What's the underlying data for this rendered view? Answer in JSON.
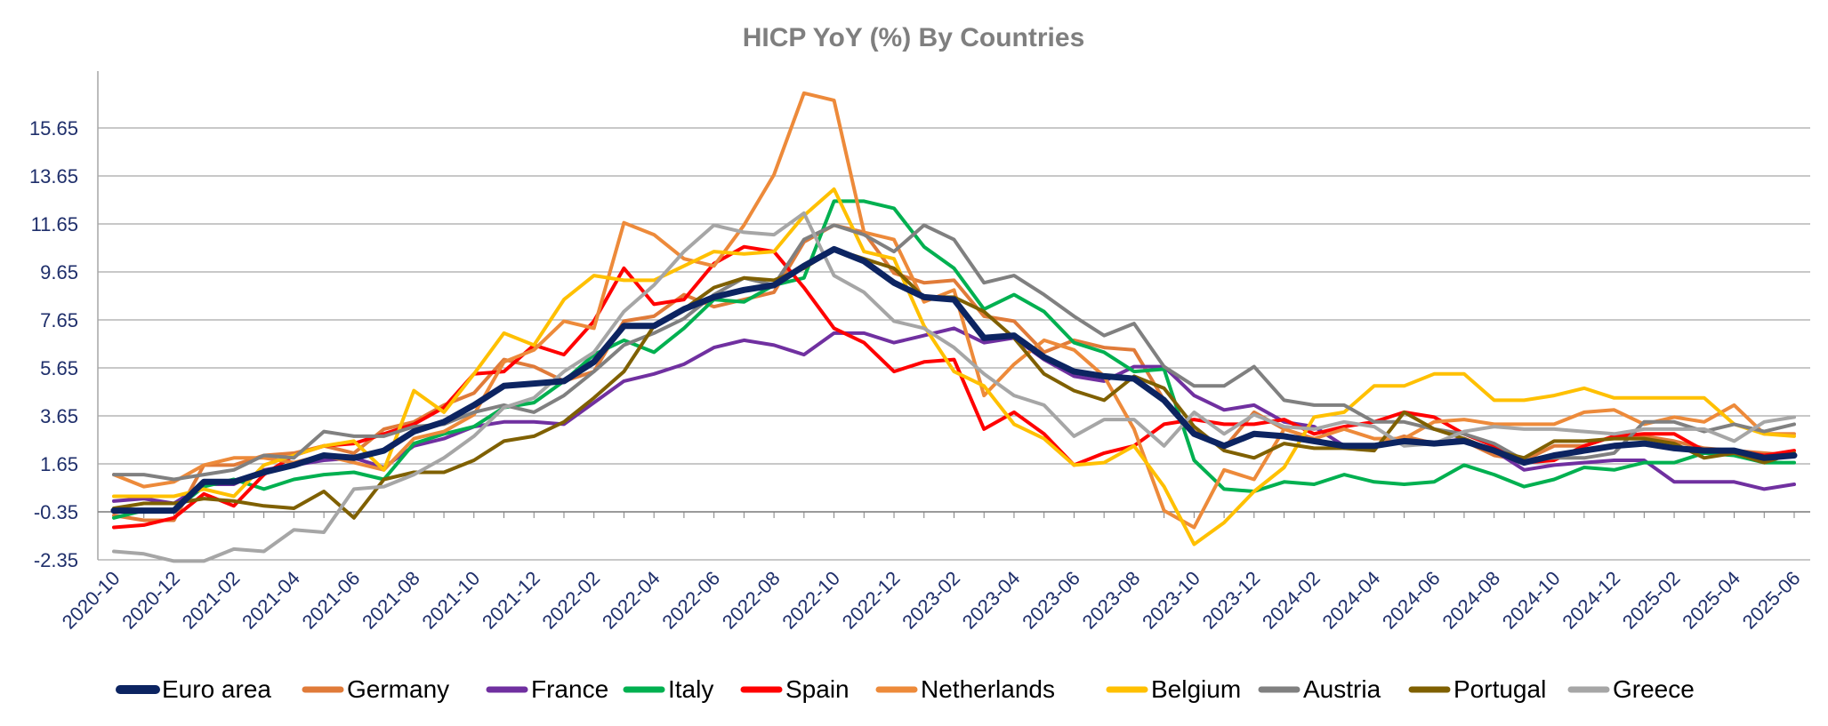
{
  "chart_data": {
    "type": "line",
    "title": "HICP YoY (%) By Countries",
    "xlabel": "",
    "ylabel": "",
    "ylim": [
      -2.35,
      17.65
    ],
    "yticks": [
      "15.65",
      "13.65",
      "11.65",
      "9.65",
      "7.65",
      "5.65",
      "3.65",
      "1.65",
      "-0.35",
      "-2.35"
    ],
    "ytick_values": [
      15.65,
      13.65,
      11.65,
      9.65,
      7.65,
      5.65,
      3.65,
      1.65,
      -0.35,
      -2.35
    ],
    "x": [
      "2020-10",
      "2020-11",
      "2020-12",
      "2021-01",
      "2021-02",
      "2021-03",
      "2021-04",
      "2021-05",
      "2021-06",
      "2021-07",
      "2021-08",
      "2021-09",
      "2021-10",
      "2021-11",
      "2021-12",
      "2022-01",
      "2022-02",
      "2022-03",
      "2022-04",
      "2022-05",
      "2022-06",
      "2022-07",
      "2022-08",
      "2022-09",
      "2022-10",
      "2022-11",
      "2022-12",
      "2023-01",
      "2023-02",
      "2023-03",
      "2023-04",
      "2023-05",
      "2023-06",
      "2023-07",
      "2023-08",
      "2023-09",
      "2023-10",
      "2023-11",
      "2023-12",
      "2024-01",
      "2024-02",
      "2024-03",
      "2024-04",
      "2024-05",
      "2024-06",
      "2024-07",
      "2024-08",
      "2024-09",
      "2024-10",
      "2024-11",
      "2024-12",
      "2025-01",
      "2025-02",
      "2025-03",
      "2025-04",
      "2025-05",
      "2025-06"
    ],
    "xtick_labels": [
      "2020-10",
      "2020-12",
      "2021-02",
      "2021-04",
      "2021-06",
      "2021-08",
      "2021-10",
      "2021-12",
      "2022-02",
      "2022-04",
      "2022-06",
      "2022-08",
      "2022-10",
      "2022-12",
      "2023-02",
      "2023-04",
      "2023-06",
      "2023-08",
      "2023-10",
      "2023-12",
      "2024-02",
      "2024-04",
      "2024-06",
      "2024-08",
      "2024-10",
      "2024-12",
      "2025-02",
      "2025-04",
      "2025-06"
    ],
    "legend_position": "bottom",
    "grid": true,
    "series": [
      {
        "name": "Euro area",
        "color": "#0c2461",
        "width": 7,
        "values": [
          -0.3,
          -0.3,
          -0.3,
          0.9,
          0.9,
          1.3,
          1.6,
          2.0,
          1.9,
          2.2,
          3.0,
          3.4,
          4.1,
          4.9,
          5.0,
          5.1,
          5.9,
          7.4,
          7.4,
          8.1,
          8.6,
          8.9,
          9.1,
          9.9,
          10.6,
          10.1,
          9.2,
          8.6,
          8.5,
          6.9,
          7.0,
          6.1,
          5.5,
          5.3,
          5.2,
          4.3,
          2.9,
          2.4,
          2.9,
          2.8,
          2.6,
          2.4,
          2.4,
          2.6,
          2.5,
          2.6,
          2.2,
          1.7,
          2.0,
          2.2,
          2.4,
          2.5,
          2.3,
          2.2,
          2.2,
          1.9,
          2.0
        ]
      },
      {
        "name": "Germany",
        "color": "#e07b39",
        "width": 4,
        "values": [
          -0.5,
          -0.7,
          -0.7,
          1.6,
          1.6,
          2.0,
          2.1,
          2.4,
          2.1,
          3.1,
          3.4,
          4.1,
          4.6,
          6.0,
          5.7,
          5.1,
          5.5,
          7.6,
          7.8,
          8.7,
          8.2,
          8.5,
          8.8,
          10.9,
          11.6,
          11.3,
          9.6,
          9.2,
          9.3,
          7.8,
          7.6,
          6.3,
          6.8,
          6.5,
          6.4,
          4.3,
          3.0,
          2.3,
          3.8,
          3.1,
          2.7,
          2.3,
          2.4,
          2.8,
          2.5,
          2.6,
          2.0,
          1.8,
          2.4,
          2.4,
          2.8,
          2.8,
          2.6,
          2.3,
          2.2,
          2.1,
          2.0
        ]
      },
      {
        "name": "France",
        "color": "#7030a0",
        "width": 4,
        "values": [
          0.1,
          0.2,
          0.0,
          0.8,
          0.8,
          1.4,
          1.6,
          1.8,
          1.9,
          1.5,
          2.4,
          2.7,
          3.2,
          3.4,
          3.4,
          3.3,
          4.2,
          5.1,
          5.4,
          5.8,
          6.5,
          6.8,
          6.6,
          6.2,
          7.1,
          7.1,
          6.7,
          7.0,
          7.3,
          6.7,
          6.9,
          6.0,
          5.3,
          5.1,
          5.7,
          5.7,
          4.5,
          3.9,
          4.1,
          3.4,
          3.2,
          2.4,
          2.4,
          2.6,
          2.5,
          2.7,
          2.2,
          1.4,
          1.6,
          1.7,
          1.8,
          1.8,
          0.9,
          0.9,
          0.9,
          0.6,
          0.8
        ]
      },
      {
        "name": "Italy",
        "color": "#00b050",
        "width": 4,
        "values": [
          -0.6,
          -0.3,
          -0.3,
          0.7,
          1.0,
          0.6,
          1.0,
          1.2,
          1.3,
          1.0,
          2.5,
          2.9,
          3.2,
          4.0,
          4.2,
          5.1,
          6.2,
          6.8,
          6.3,
          7.3,
          8.5,
          8.4,
          9.1,
          9.4,
          12.6,
          12.6,
          12.3,
          10.7,
          9.8,
          8.1,
          8.7,
          8.0,
          6.7,
          6.3,
          5.5,
          5.6,
          1.8,
          0.6,
          0.5,
          0.9,
          0.8,
          1.2,
          0.9,
          0.8,
          0.9,
          1.6,
          1.2,
          0.7,
          1.0,
          1.5,
          1.4,
          1.7,
          1.7,
          2.1,
          2.0,
          1.7,
          1.7
        ]
      },
      {
        "name": "Spain",
        "color": "#ff0000",
        "width": 4,
        "values": [
          -1.0,
          -0.9,
          -0.6,
          0.4,
          -0.1,
          1.2,
          2.0,
          2.4,
          2.5,
          2.9,
          3.3,
          4.0,
          5.4,
          5.5,
          6.6,
          6.2,
          7.6,
          9.8,
          8.3,
          8.5,
          10.0,
          10.7,
          10.5,
          9.0,
          7.3,
          6.7,
          5.5,
          5.9,
          6.0,
          3.1,
          3.8,
          2.9,
          1.6,
          2.1,
          2.4,
          3.3,
          3.5,
          3.3,
          3.3,
          3.5,
          2.9,
          3.2,
          3.4,
          3.8,
          3.6,
          2.9,
          2.4,
          1.7,
          1.8,
          2.4,
          2.8,
          2.9,
          2.9,
          2.2,
          2.2,
          2.0,
          2.2
        ]
      },
      {
        "name": "Netherlands",
        "color": "#ed8a3a",
        "width": 4,
        "values": [
          1.2,
          0.7,
          0.9,
          1.6,
          1.9,
          1.9,
          1.7,
          2.0,
          1.7,
          1.4,
          2.7,
          3.0,
          3.7,
          5.9,
          6.4,
          7.6,
          7.3,
          11.7,
          11.2,
          10.2,
          9.9,
          11.6,
          13.7,
          17.1,
          16.8,
          11.3,
          11.0,
          8.4,
          8.9,
          4.5,
          5.8,
          6.8,
          6.4,
          5.3,
          3.1,
          -0.3,
          -1.0,
          1.4,
          1.0,
          3.1,
          2.7,
          3.1,
          2.7,
          2.7,
          3.4,
          3.5,
          3.3,
          3.3,
          3.3,
          3.8,
          3.9,
          3.3,
          3.6,
          3.4,
          4.1,
          2.9,
          2.9
        ]
      },
      {
        "name": "Belgium",
        "color": "#ffc000",
        "width": 4,
        "values": [
          0.3,
          0.3,
          0.3,
          0.6,
          0.3,
          1.6,
          2.0,
          2.4,
          2.6,
          1.4,
          4.7,
          3.8,
          5.4,
          7.1,
          6.6,
          8.5,
          9.5,
          9.3,
          9.3,
          9.9,
          10.5,
          10.4,
          10.5,
          12.0,
          13.1,
          10.5,
          10.2,
          7.4,
          5.5,
          4.9,
          3.3,
          2.7,
          1.6,
          1.7,
          2.4,
          0.7,
          -1.7,
          -0.8,
          0.5,
          1.5,
          3.6,
          3.8,
          4.9,
          4.9,
          5.4,
          5.4,
          4.3,
          4.3,
          4.5,
          4.8,
          4.4,
          4.4,
          4.4,
          4.4,
          3.3,
          2.9,
          2.8
        ]
      },
      {
        "name": "Austria",
        "color": "#808080",
        "width": 4,
        "values": [
          1.2,
          1.2,
          1.0,
          1.2,
          1.4,
          2.0,
          1.9,
          3.0,
          2.8,
          2.8,
          3.2,
          3.3,
          3.8,
          4.1,
          3.8,
          4.5,
          5.5,
          6.6,
          7.1,
          7.7,
          8.7,
          9.4,
          9.1,
          11.0,
          11.6,
          11.2,
          10.5,
          11.6,
          11.0,
          9.2,
          9.5,
          8.7,
          7.8,
          7.0,
          7.5,
          5.7,
          4.9,
          4.9,
          5.7,
          4.3,
          4.1,
          4.1,
          3.4,
          3.4,
          3.1,
          2.9,
          2.5,
          1.8,
          1.9,
          1.9,
          2.1,
          3.4,
          3.4,
          3.0,
          3.3,
          3.0,
          3.3
        ]
      },
      {
        "name": "Portugal",
        "color": "#7f6000",
        "width": 4,
        "values": [
          -0.2,
          0.0,
          0.0,
          0.2,
          0.1,
          -0.1,
          -0.2,
          0.5,
          -0.6,
          1.0,
          1.3,
          1.3,
          1.8,
          2.6,
          2.8,
          3.4,
          4.4,
          5.5,
          7.4,
          8.1,
          9.0,
          9.4,
          9.3,
          9.8,
          10.6,
          10.2,
          9.8,
          8.6,
          8.6,
          8.0,
          6.9,
          5.4,
          4.7,
          4.3,
          5.3,
          4.8,
          3.2,
          2.2,
          1.9,
          2.5,
          2.3,
          2.3,
          2.2,
          3.8,
          3.1,
          2.7,
          2.2,
          1.9,
          2.6,
          2.6,
          2.7,
          2.7,
          2.5,
          1.9,
          2.1,
          1.7,
          2.1
        ]
      },
      {
        "name": "Greece",
        "color": "#a6a6a6",
        "width": 4,
        "values": [
          -2.0,
          -2.1,
          -2.4,
          -2.4,
          -1.9,
          -2.0,
          -1.1,
          -1.2,
          0.6,
          0.7,
          1.2,
          1.9,
          2.8,
          4.0,
          4.4,
          5.5,
          6.3,
          8.0,
          9.1,
          10.5,
          11.6,
          11.3,
          11.2,
          12.1,
          9.5,
          8.8,
          7.6,
          7.3,
          6.5,
          5.4,
          4.5,
          4.1,
          2.8,
          3.5,
          3.5,
          2.4,
          3.8,
          2.9,
          3.7,
          3.2,
          3.1,
          3.4,
          3.2,
          2.4,
          2.5,
          3.0,
          3.2,
          3.1,
          3.1,
          3.0,
          2.9,
          3.1,
          3.1,
          3.1,
          2.6,
          3.4,
          3.6
        ]
      }
    ]
  }
}
